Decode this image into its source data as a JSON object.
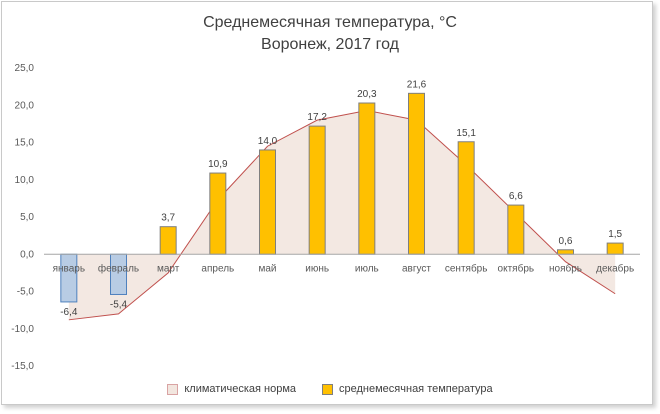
{
  "chart_data": {
    "type": "bar",
    "title": "Среднемесячная  температура, °C",
    "subtitle": "Воронеж,  2017 год",
    "categories": [
      "январь",
      "февраль",
      "март",
      "апрель",
      "май",
      "июнь",
      "июль",
      "август",
      "сентябрь",
      "октябрь",
      "ноябрь",
      "декабрь"
    ],
    "series": [
      {
        "name": "среднемесячная температура",
        "values": [
          -6.4,
          -5.4,
          3.7,
          10.9,
          14.0,
          17.2,
          20.3,
          21.6,
          15.1,
          6.6,
          0.6,
          1.5
        ],
        "labels": [
          "-6,4",
          "-5,4",
          "3,7",
          "10,9",
          "14,0",
          "17,2",
          "20,3",
          "21,6",
          "15,1",
          "6,6",
          "0,6",
          "1,5"
        ],
        "color": "#ffc000",
        "negative_color": "#b8cce4"
      },
      {
        "name": "климатическая норма",
        "type": "area",
        "values": [
          -8.8,
          -8.0,
          -2.5,
          7.3,
          14.5,
          18.0,
          19.3,
          18.0,
          12.0,
          5.5,
          -1.0,
          -5.3
        ],
        "color": "#f2e6df",
        "line_color": "#c0504d"
      }
    ],
    "ylim": [
      -15,
      25
    ],
    "yticks": [
      "25,0",
      "20,0",
      "15,0",
      "10,0",
      "5,0",
      "0,0",
      "-5,0",
      "-10,0",
      "-15,0"
    ],
    "grid": false,
    "legend": "bottom"
  }
}
